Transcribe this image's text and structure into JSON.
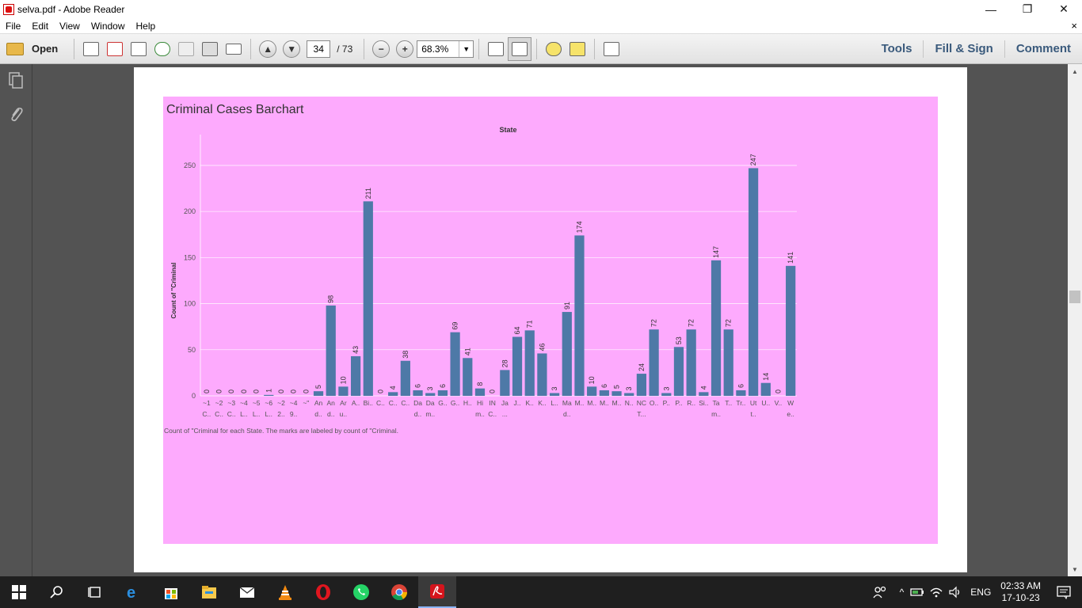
{
  "window": {
    "title": "selva.pdf - Adobe Reader",
    "minimize": "—",
    "restore": "❐",
    "close": "✕"
  },
  "menu": {
    "items": [
      "File",
      "Edit",
      "View",
      "Window",
      "Help"
    ],
    "close_doc": "×"
  },
  "toolbar": {
    "open_label": "Open",
    "page_current": "34",
    "page_total": "/ 73",
    "zoom": "68.3%",
    "tools_label": "Tools",
    "fill_sign_label": "Fill & Sign",
    "comment_label": "Comment"
  },
  "chart_data": {
    "type": "bar",
    "title": "Criminal Cases Barchart",
    "xlabel": "State",
    "ylabel": "Count of \"Criminal",
    "caption": "Count of \"Criminal for each State.  The marks are labeled by count of \"Criminal.",
    "ylim": [
      0,
      280
    ],
    "yticks": [
      0,
      50,
      100,
      150,
      200,
      250
    ],
    "grid": true,
    "bar_color": "#4e79a7",
    "categories": [
      [
        "~1",
        "C.."
      ],
      [
        "~2",
        "C.."
      ],
      [
        "~3",
        "C.."
      ],
      [
        "~4",
        "L.."
      ],
      [
        "~5",
        "L.."
      ],
      [
        "~6",
        "L.."
      ],
      [
        "~2",
        "2.."
      ],
      [
        "~4",
        "9.."
      ],
      [
        "~\"",
        ""
      ],
      [
        "An",
        "d.."
      ],
      [
        "An",
        "d.."
      ],
      [
        "Ar",
        "u.."
      ],
      [
        "A..",
        ""
      ],
      [
        "Bi..",
        ""
      ],
      [
        "C..",
        ""
      ],
      [
        "C..",
        ""
      ],
      [
        "C..",
        ""
      ],
      [
        "Da",
        "d.."
      ],
      [
        "Da",
        "m.."
      ],
      [
        "G..",
        ""
      ],
      [
        "G..",
        ""
      ],
      [
        "H..",
        ""
      ],
      [
        "Hi",
        "m.."
      ],
      [
        "IN",
        "C.."
      ],
      [
        "Ja",
        "..."
      ],
      [
        "J..",
        ""
      ],
      [
        "K..",
        ""
      ],
      [
        "K..",
        ""
      ],
      [
        "L..",
        ""
      ],
      [
        "Ma",
        "d.."
      ],
      [
        "M..",
        ""
      ],
      [
        "M..",
        ""
      ],
      [
        "M..",
        ""
      ],
      [
        "M..",
        ""
      ],
      [
        "N..",
        ""
      ],
      [
        "NC",
        "T..."
      ],
      [
        "O..",
        ""
      ],
      [
        "P..",
        ""
      ],
      [
        "P..",
        ""
      ],
      [
        "R..",
        ""
      ],
      [
        "Si..",
        ""
      ],
      [
        "Ta",
        "m.."
      ],
      [
        "T..",
        ""
      ],
      [
        "Tr..",
        ""
      ],
      [
        "Ut",
        "t.."
      ],
      [
        "U..",
        ""
      ],
      [
        "V..",
        ""
      ],
      [
        "W",
        "e.."
      ]
    ],
    "values": [
      0,
      0,
      0,
      0,
      0,
      1,
      0,
      0,
      0,
      5,
      98,
      10,
      43,
      211,
      0,
      4,
      38,
      6,
      3,
      6,
      69,
      41,
      8,
      0,
      28,
      64,
      71,
      46,
      3,
      91,
      174,
      10,
      6,
      5,
      3,
      24,
      72,
      3,
      53,
      72,
      4,
      147,
      72,
      6,
      247,
      14,
      0,
      141
    ]
  },
  "taskbar": {
    "lang": "ENG",
    "time": "02:33 AM",
    "date": "17-10-23"
  }
}
